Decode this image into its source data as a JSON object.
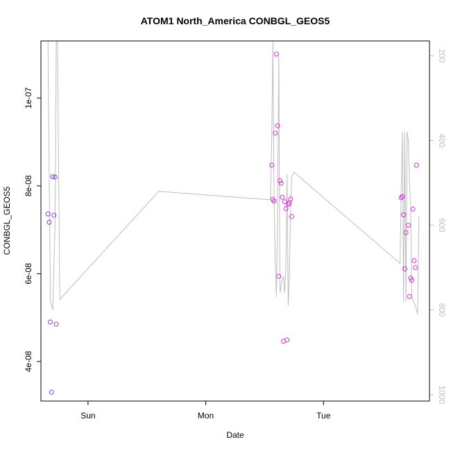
{
  "chart_data": {
    "type": "scatter",
    "title": "ATOM1 North_America CONBGL_GEOS5",
    "xlabel": "Date",
    "ylabel": "CONBGL_GEOS5",
    "x_ticks": [
      {
        "x": 1.0,
        "label": "Sun"
      },
      {
        "x": 2.0,
        "label": "Mon"
      },
      {
        "x": 3.0,
        "label": "Tue"
      }
    ],
    "xlim": [
      0.6,
      3.9
    ],
    "ylim": [
      3.1e-08,
      1.13e-07
    ],
    "y_ticks": [
      {
        "value": 4e-08,
        "label": "4e-08"
      },
      {
        "value": 6e-08,
        "label": "6e-08"
      },
      {
        "value": 8e-08,
        "label": "8e-08"
      },
      {
        "value": 1e-07,
        "label": "1e-07"
      }
    ],
    "right_axis": {
      "reversed": true,
      "ylim": [
        1015,
        165
      ],
      "ticks": [
        {
          "value": 200,
          "label": "200"
        },
        {
          "value": 400,
          "label": "400"
        },
        {
          "value": 600,
          "label": "600"
        },
        {
          "value": 800,
          "label": "800"
        },
        {
          "value": 1000,
          "label": "1000"
        }
      ],
      "line_color": "#bdbdbd",
      "line": [
        [
          0.6,
          165
        ],
        [
          0.66,
          165
        ],
        [
          0.68,
          780
        ],
        [
          0.7,
          800
        ],
        [
          0.72,
          600
        ],
        [
          0.73,
          165
        ],
        [
          0.74,
          165
        ],
        [
          0.76,
          775
        ],
        [
          1.6,
          520
        ],
        [
          2.55,
          540
        ],
        [
          2.56,
          400
        ],
        [
          2.57,
          165
        ],
        [
          2.58,
          540
        ],
        [
          2.59,
          680
        ],
        [
          2.6,
          770
        ],
        [
          2.61,
          560
        ],
        [
          2.62,
          200
        ],
        [
          2.63,
          760
        ],
        [
          2.64,
          740
        ],
        [
          2.66,
          720
        ],
        [
          2.67,
          760
        ],
        [
          2.68,
          700
        ],
        [
          2.69,
          480
        ],
        [
          2.7,
          790
        ],
        [
          2.71,
          720
        ],
        [
          2.72,
          560
        ],
        [
          2.73,
          485
        ],
        [
          2.75,
          475
        ],
        [
          3.65,
          690
        ],
        [
          3.66,
          510
        ],
        [
          3.67,
          380
        ],
        [
          3.68,
          780
        ],
        [
          3.69,
          380
        ],
        [
          3.7,
          780
        ],
        [
          3.71,
          380
        ],
        [
          3.72,
          400
        ],
        [
          3.73,
          500
        ],
        [
          3.74,
          550
        ],
        [
          3.75,
          770
        ],
        [
          3.78,
          790
        ],
        [
          3.8,
          810
        ],
        [
          3.81,
          580
        ]
      ]
    },
    "series": [
      {
        "color": "#7b3fe6",
        "points": [
          [
            0.66,
            7.36e-08
          ],
          [
            0.67,
            7.17e-08
          ],
          [
            0.68,
            4.9e-08
          ],
          [
            0.69,
            3.3e-08
          ],
          [
            0.7,
            8.21e-08
          ],
          [
            0.71,
            7.33e-08
          ],
          [
            0.72,
            8.2e-08
          ],
          [
            0.73,
            4.85e-08
          ]
        ]
      },
      {
        "color": "#e02ad8",
        "points": [
          [
            2.56,
            8.47e-08
          ],
          [
            2.57,
            7.69e-08
          ],
          [
            2.58,
            7.65e-08
          ],
          [
            2.59,
            9.2e-08
          ],
          [
            2.6,
            1.1e-07
          ],
          [
            2.61,
            9.37e-08
          ],
          [
            2.62,
            5.94e-08
          ],
          [
            2.63,
            8.12e-08
          ],
          [
            2.64,
            8.06e-08
          ],
          [
            2.65,
            7.74e-08
          ],
          [
            2.66,
            4.46e-08
          ],
          [
            2.67,
            7.64e-08
          ],
          [
            2.68,
            7.48e-08
          ],
          [
            2.69,
            4.49e-08
          ],
          [
            2.7,
            7.58e-08
          ],
          [
            2.71,
            7.61e-08
          ],
          [
            2.72,
            7.7e-08
          ],
          [
            2.73,
            7.3e-08
          ],
          [
            3.66,
            7.73e-08
          ],
          [
            3.67,
            7.76e-08
          ],
          [
            3.68,
            7.34e-08
          ],
          [
            3.69,
            6.11e-08
          ],
          [
            3.7,
            6.94e-08
          ],
          [
            3.72,
            7.1e-08
          ],
          [
            3.73,
            5.48e-08
          ],
          [
            3.74,
            5.9e-08
          ],
          [
            3.75,
            5.85e-08
          ],
          [
            3.76,
            7.47e-08
          ],
          [
            3.77,
            6.3e-08
          ],
          [
            3.78,
            6.14e-08
          ],
          [
            3.79,
            8.47e-08
          ]
        ]
      }
    ]
  }
}
